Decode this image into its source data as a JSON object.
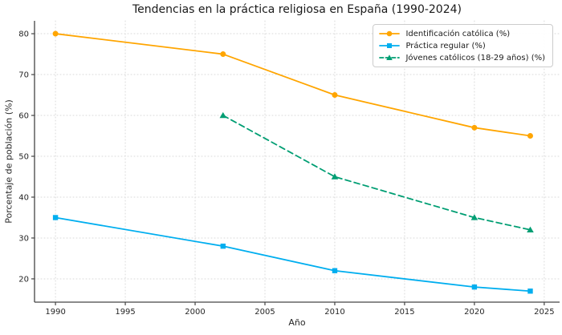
{
  "chart_data": {
    "type": "line",
    "title": "Tendencias en la práctica religiosa en España (1990-2024)",
    "xlabel": "Año",
    "ylabel": "Porcentaje de población (%)",
    "xlim": [
      1988.5,
      2026.1
    ],
    "ylim": [
      14.3,
      83.15
    ],
    "xticks": [
      1990,
      1995,
      2000,
      2005,
      2010,
      2015,
      2020,
      2025
    ],
    "yticks": [
      20,
      30,
      40,
      50,
      60,
      70,
      80
    ],
    "grid": true,
    "grid_color": "#d9d9d9",
    "spine_color": "#444444",
    "text_color": "#262626",
    "legend_position": "upper right",
    "series": [
      {
        "name": "Identificación católica (%)",
        "color": "#FFA500",
        "marker": "circle",
        "line_style": "solid",
        "x": [
          1990,
          2002,
          2010,
          2020,
          2024
        ],
        "values": [
          80,
          75,
          65,
          57,
          55
        ]
      },
      {
        "name": "Práctica regular (%)",
        "color": "#00AEEF",
        "marker": "square",
        "line_style": "solid",
        "x": [
          1990,
          2002,
          2010,
          2020,
          2024
        ],
        "values": [
          35,
          28,
          22,
          18,
          17
        ]
      },
      {
        "name": "Jóvenes católicos (18-29 años) (%)",
        "color": "#009E73",
        "marker": "triangle",
        "line_style": "dashed",
        "x": [
          2002,
          2010,
          2020,
          2024
        ],
        "values": [
          60,
          45,
          35,
          32
        ]
      }
    ]
  }
}
